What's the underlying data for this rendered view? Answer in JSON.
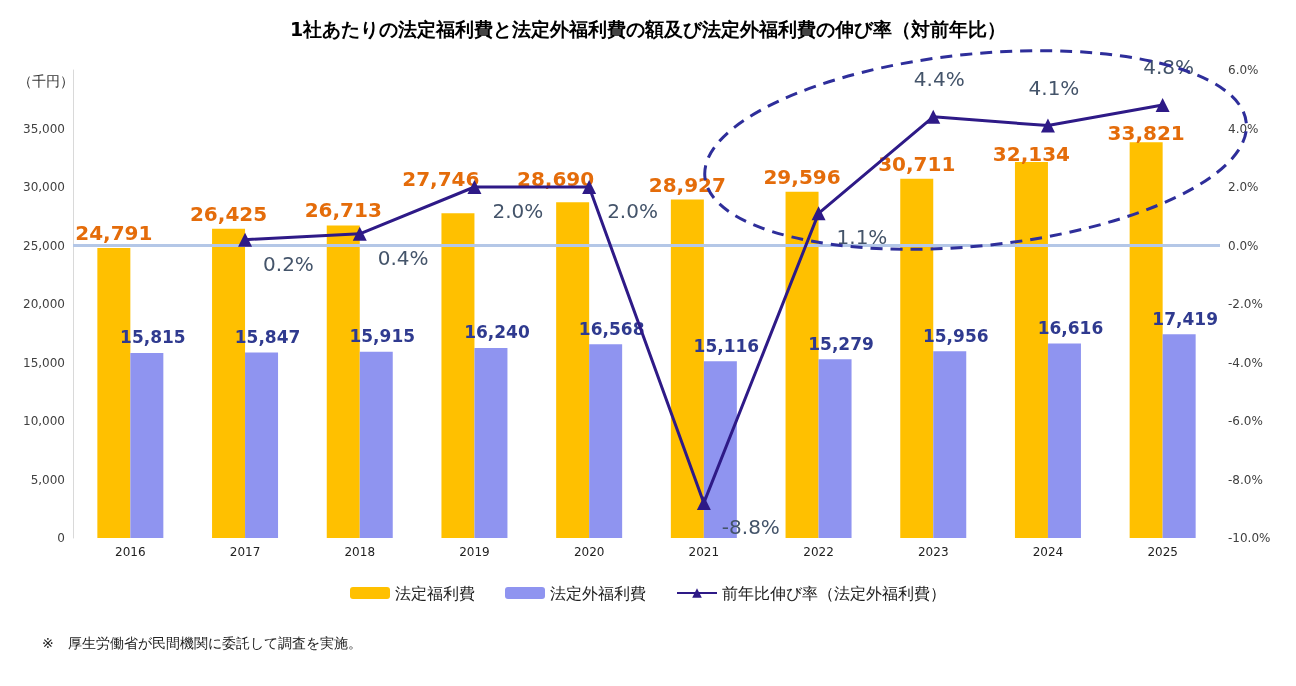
{
  "chart_data": {
    "type": "bar",
    "title": "1社あたりの法定福利費と法定外福利費の額及び法定外福利費の伸び率（対前年比）",
    "ylabel": "（千円）",
    "categories": [
      "2016",
      "2017",
      "2018",
      "2019",
      "2020",
      "2021",
      "2022",
      "2023",
      "2024",
      "2025"
    ],
    "series": [
      {
        "name": "法定福利費",
        "color": "#ffc000",
        "values": [
          24791,
          26425,
          26713,
          27746,
          28690,
          28927,
          29596,
          30711,
          32134,
          33821
        ],
        "value_labels": [
          "24,791",
          "26,425",
          "26,713",
          "27,746",
          "28,690",
          "28,927",
          "29,596",
          "30,711",
          "32,134",
          "33,821"
        ]
      },
      {
        "name": "法定外福利費",
        "color": "#8f94f0",
        "values": [
          15815,
          15847,
          15915,
          16240,
          16568,
          15116,
          15279,
          15956,
          16616,
          17419
        ],
        "value_labels": [
          "15,815",
          "15,847",
          "15,915",
          "16,240",
          "16,568",
          "15,116",
          "15,279",
          "15,956",
          "16,616",
          "17,419"
        ]
      },
      {
        "name": "前年比伸び率（法定外福利費）",
        "type": "line",
        "axis": "y2",
        "color": "#2e1a87",
        "marker": "triangle",
        "values": [
          null,
          0.2,
          0.4,
          2.0,
          2.0,
          -8.8,
          1.1,
          4.4,
          4.1,
          4.8
        ],
        "value_labels": [
          null,
          "0.2%",
          "0.4%",
          "2.0%",
          "2.0%",
          "-8.8%",
          "1.1%",
          "4.4%",
          "4.1%",
          "4.8%"
        ]
      }
    ],
    "ylim": [
      0,
      40000
    ],
    "yticks": [
      0,
      {
        "value": 5000,
        "label": "5,000"
      },
      {
        "value": 10000,
        "label": "10,000"
      },
      {
        "value": 15000,
        "label": "15,000"
      },
      {
        "value": 20000,
        "label": "20,000"
      },
      {
        "value": 25000,
        "label": "25,000"
      },
      {
        "value": 30000,
        "label": "30,000"
      },
      {
        "value": 35000,
        "label": "35,000"
      }
    ],
    "y2lim": [
      -10,
      6
    ],
    "y2ticks": [
      {
        "value": -10,
        "label": "-10.0%"
      },
      {
        "value": -8,
        "label": "-8.0%"
      },
      {
        "value": -6,
        "label": "-6.0%"
      },
      {
        "value": -4,
        "label": "-4.0%"
      },
      {
        "value": -2,
        "label": "-2.0%"
      },
      {
        "value": 0,
        "label": "0.0%"
      },
      {
        "value": 2,
        "label": "2.0%"
      },
      {
        "value": 4,
        "label": "4.0%"
      },
      {
        "value": 6,
        "label": "6.0%"
      }
    ],
    "ref_lines": [
      {
        "axis": "y2",
        "value": 0,
        "color": "#b4c7e7"
      }
    ],
    "grid": false,
    "legend": "bottom",
    "annotations": [
      "※　厚生労働省が民間機関に委託して調査を実施。"
    ]
  }
}
